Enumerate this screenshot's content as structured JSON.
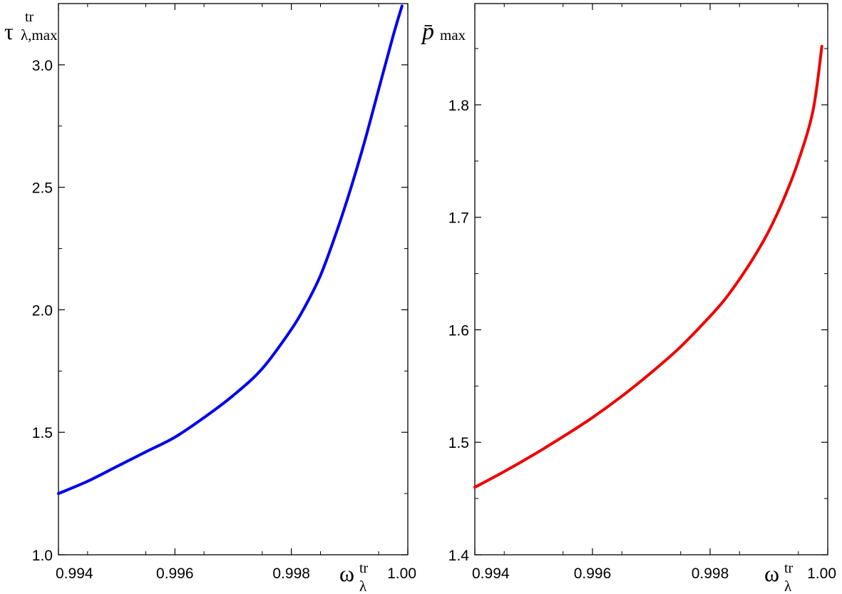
{
  "chart_data": [
    {
      "type": "line",
      "color": "#0000ee",
      "xlim": [
        0.994,
        1.0
      ],
      "ylim": [
        1.0,
        3.25
      ],
      "xticks": [
        "0.994",
        "0.996",
        "0.998",
        "1.00"
      ],
      "yticks": [
        "1.0",
        "1.5",
        "2.0",
        "2.5",
        "3.0"
      ],
      "ylabel": {
        "symbol": "τ",
        "sup": "tr",
        "sub": "λ,max"
      },
      "xlabel": {
        "symbol": "ω",
        "sup": "tr",
        "sub": "λ"
      },
      "series": [
        {
          "x": [
            0.994,
            0.9945,
            0.995,
            0.9955,
            0.996,
            0.9965,
            0.997,
            0.9975,
            0.998,
            0.99825,
            0.9985,
            0.99875,
            0.999,
            0.99925,
            0.9995,
            0.99975,
            0.9999
          ],
          "y": [
            1.25,
            1.3,
            1.36,
            1.42,
            1.48,
            1.56,
            1.65,
            1.76,
            1.92,
            2.02,
            2.14,
            2.3,
            2.48,
            2.68,
            2.9,
            3.12,
            3.24
          ]
        }
      ]
    },
    {
      "type": "line",
      "color": "#ee0000",
      "xlim": [
        0.994,
        1.0
      ],
      "ylim": [
        1.4,
        1.89
      ],
      "xticks": [
        "0.994",
        "0.996",
        "0.998",
        "1.00"
      ],
      "yticks": [
        "1.4",
        "1.5",
        "1.6",
        "1.7",
        "1.8"
      ],
      "ylabel": {
        "symbol": "p̄",
        "sub": "max"
      },
      "xlabel": {
        "symbol": "ω",
        "sup": "tr",
        "sub": "λ"
      },
      "series": [
        {
          "x": [
            0.994,
            0.9945,
            0.995,
            0.9955,
            0.996,
            0.9965,
            0.997,
            0.9975,
            0.998,
            0.99825,
            0.9985,
            0.99875,
            0.999,
            0.99925,
            0.9995,
            0.99975,
            0.9999
          ],
          "y": [
            1.46,
            1.474,
            1.489,
            1.505,
            1.522,
            1.541,
            1.562,
            1.585,
            1.612,
            1.627,
            1.645,
            1.665,
            1.688,
            1.716,
            1.75,
            1.795,
            1.852
          ]
        }
      ]
    }
  ]
}
